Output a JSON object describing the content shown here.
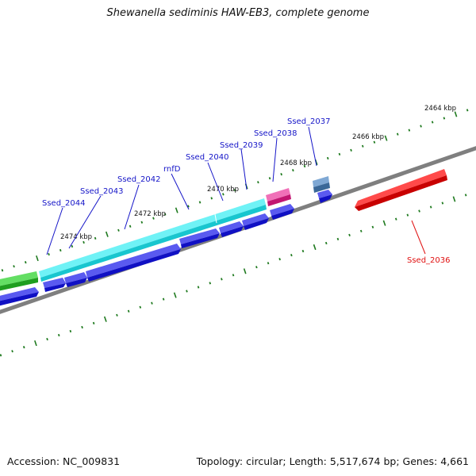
{
  "title": "Shewanella sediminis HAW-EB3, complete genome",
  "footer": {
    "accession": "Accession: NC_009831",
    "summary": "Topology: circular; Length: 5,517,674 bp; Genes: 4,661"
  },
  "scale_labels": [
    "2464 kbp",
    "2466 kbp",
    "2468 kbp",
    "2470 kbp",
    "2472 kbp",
    "2474 kbp"
  ],
  "gene_labels": [
    "Ssed_2037",
    "Ssed_2038",
    "Ssed_2039",
    "Ssed_2040",
    "rnfD",
    "Ssed_2042",
    "Ssed_2043",
    "Ssed_2044",
    "Ssed_2036"
  ],
  "colors": {
    "backbone": "#808080",
    "forward_cds": "#1a1ae6",
    "reverse_cds": "#e01010",
    "operon_cyan": "#22e0e8",
    "feature_magenta": "#e0288c",
    "feature_steelblue": "#4a7fb8",
    "feature_green": "#2fc02f",
    "tick_green": "#1f7a1f",
    "label_blue": "#1515c8",
    "label_red": "#e01010"
  }
}
